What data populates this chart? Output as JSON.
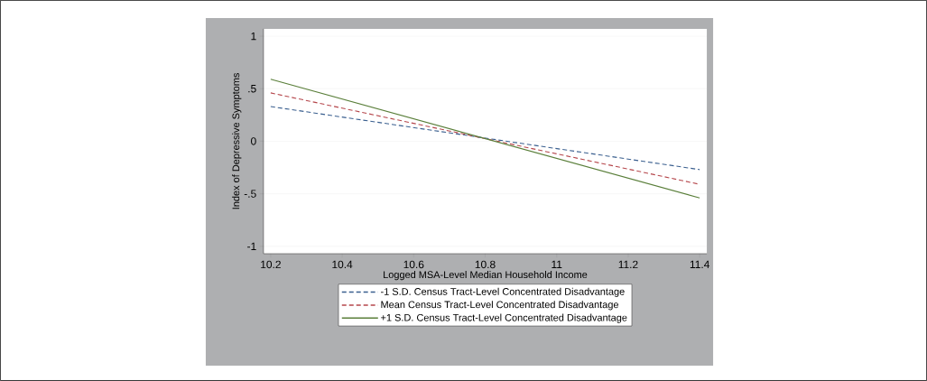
{
  "chart_data": {
    "type": "line",
    "xlabel": "Logged MSA-Level Median Household Income",
    "ylabel": "Index of Depressive Symptoms",
    "x": [
      10.2,
      11.4
    ],
    "series": [
      {
        "name": "-1 S.D. Census Tract-Level Concentrated Disadvantage",
        "color": "#3a5f8f",
        "values": [
          0.33,
          -0.27
        ],
        "line_style": "dashed"
      },
      {
        "name": "Mean Census Tract-Level Concentrated Disadvantage",
        "color": "#b5464b",
        "values": [
          0.46,
          -0.41
        ],
        "line_style": "dashed"
      },
      {
        "name": "+1 S.D. Census Tract-Level Concentrated Disadvantage",
        "color": "#5a7f3a",
        "values": [
          0.59,
          -0.54
        ],
        "line_style": "solid"
      }
    ],
    "xlim": [
      10.18,
      11.42
    ],
    "ylim": [
      -1.07,
      1.07
    ],
    "xticks": [
      10.2,
      10.4,
      10.6,
      10.8,
      11,
      11.2,
      11.4
    ],
    "yticks": [
      {
        "value": -1,
        "label": "-1"
      },
      {
        "value": -0.5,
        "label": "-.5"
      },
      {
        "value": 0,
        "label": "0"
      },
      {
        "value": 0.5,
        "label": ".5"
      },
      {
        "value": 1,
        "label": "1"
      }
    ],
    "grid": "y",
    "legend": "bottom"
  }
}
